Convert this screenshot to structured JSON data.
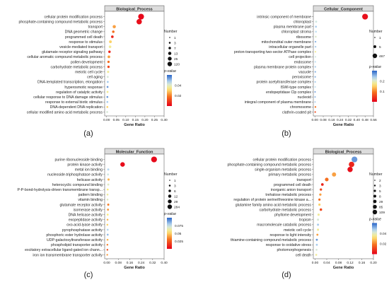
{
  "chart_data": [
    {
      "type": "scatter",
      "panel_label": "(a)",
      "title": "Biological_Process",
      "xlabel": "Gene Ratio",
      "x_ticks": [
        "0.00",
        "0.05",
        "0.10",
        "0.15",
        "0.20",
        "0.25",
        "0.30"
      ],
      "xlim": [
        -0.01,
        0.3
      ],
      "legend_size_title": "Number",
      "legend_size": [
        "1",
        "3",
        "7",
        "13",
        "25",
        "120"
      ],
      "legend_color_title": "p-value",
      "legend_color_ticks": [
        "0.04",
        "0.02"
      ],
      "color_range": [
        0.0,
        0.05
      ],
      "categories": [
        "cellular protein modification process",
        "phosphate-containing compound metabolic process",
        "transport",
        "DNA geometric change",
        "programmed cell death",
        "response to stimulus",
        "vesicle-mediated transport",
        "glutamate receptor signaling pathway",
        "cellular aromatic compound metabolic process",
        "pollen development",
        "carbohydrate metabolic process",
        "meiotic cell cycle",
        "cell aging",
        "DNA-templated transcription, elongation",
        "hyperosmotic response",
        "regulation of catalytic activity",
        "cellular response to DNA damage stimulus",
        "response to external biotic stimulus",
        "DNA-dependent DNA replication",
        "cellular modified amino acid metabolic process"
      ],
      "x": [
        0.18,
        0.17,
        0.04,
        0.035,
        0.03,
        0.02,
        0.018,
        0.015,
        0.012,
        0.01,
        0.01,
        0.008,
        0.006,
        0.006,
        0.005,
        0.005,
        0.004,
        0.004,
        0.004,
        0.003
      ],
      "size": [
        120,
        100,
        22,
        9,
        10,
        13,
        10,
        8,
        12,
        6,
        7,
        5,
        3,
        3,
        2,
        3,
        2,
        2,
        2,
        2
      ],
      "pvalue": [
        0.001,
        0.002,
        0.02,
        0.015,
        0.005,
        0.025,
        0.03,
        0.005,
        0.02,
        0.015,
        0.01,
        0.03,
        0.035,
        0.04,
        0.045,
        0.03,
        0.045,
        0.04,
        0.025,
        0.035
      ]
    },
    {
      "type": "scatter",
      "panel_label": "(b)",
      "title": "Cellular_Component",
      "xlabel": "Gene Ratio",
      "x_ticks": [
        "0.00",
        "0.08",
        "0.16",
        "0.24",
        "0.32",
        "0.40",
        "0.48",
        "0.56"
      ],
      "xlim": [
        -0.015,
        0.56
      ],
      "legend_size_title": "Number",
      "legend_size": [
        "1",
        "5",
        "467"
      ],
      "legend_color_title": "p-value",
      "legend_color_ticks": [
        "0.2",
        "0.1"
      ],
      "color_range": [
        0.0,
        0.25
      ],
      "categories": [
        "intrinsic component of membrane",
        "chloroplast",
        "plasma membrane part",
        "chloroplast stroma",
        "ribosome",
        "mitochondrial outer membrane",
        "intracellular organelle part",
        "proton-transporting two-sector ATPase complex",
        "cell projection",
        "endosome",
        "plasma membrane protein complex",
        "vacuole",
        "peroxisome",
        "protein acetyltransferase complex",
        "ISWI-type complex",
        "endopeptidase Clp complex",
        "nucleoid",
        "integral component of plasma membrane",
        "chromosome",
        "clathrin-coated pit"
      ],
      "x": [
        0.48,
        0.012,
        0.01,
        0.01,
        0.008,
        0.006,
        0.006,
        0.005,
        0.005,
        0.004,
        0.004,
        0.004,
        0.003,
        0.003,
        0.003,
        0.002,
        0.002,
        0.002,
        0.005,
        0.003
      ],
      "size": [
        467,
        12,
        8,
        8,
        6,
        4,
        4,
        3,
        3,
        3,
        3,
        3,
        2,
        2,
        2,
        1,
        1,
        1,
        4,
        2
      ],
      "pvalue": [
        0.01,
        0.18,
        0.2,
        0.19,
        0.17,
        0.21,
        0.2,
        0.15,
        0.18,
        0.19,
        0.2,
        0.21,
        0.21,
        0.2,
        0.19,
        0.22,
        0.21,
        0.2,
        0.08,
        0.05
      ]
    },
    {
      "type": "scatter",
      "panel_label": "(c)",
      "title": "Molecular_Function",
      "xlabel": "Gene Ratio",
      "x_ticks": [
        "0.00",
        "0.08",
        "0.16",
        "0.24",
        "0.32",
        "0.40"
      ],
      "xlim": [
        -0.015,
        0.4
      ],
      "legend_size_title": "Number",
      "legend_size": [
        "1",
        "3",
        "6",
        "12",
        "29",
        "284"
      ],
      "legend_color_title": "p-value",
      "legend_color_ticks": [
        "0.075",
        "0.05",
        "0.025"
      ],
      "color_range": [
        0.0,
        0.09
      ],
      "categories": [
        "purine ribonucleoside binding",
        "protein kinase activity",
        "metal ion binding",
        "nucleoside-triphosphatase activity",
        "helicase activity",
        "heterocyclic compound binding",
        "P-P-bond-hydrolysis-driven transmembrane transp...",
        "pattern binding",
        "vitamin binding",
        "glutamate receptor activity",
        "isomerase activity",
        "DNA helicase activity",
        "exopeptidase activity",
        "oxo-acid-lyase activity",
        "pyrophosphatase activity",
        "phosphoric ester hydrolase activity",
        "UDP-galactosyltransferase activity",
        "phospholipid transporter activity",
        "excitatory extracellular ligand-gated ion chann...",
        "iron ion transmembrane transporter activity"
      ],
      "x": [
        0.33,
        0.11,
        0.01,
        0.008,
        0.012,
        0.01,
        0.006,
        0.005,
        0.005,
        0.01,
        0.008,
        0.006,
        0.005,
        0.004,
        0.006,
        0.006,
        0.005,
        0.004,
        0.004,
        0.003
      ],
      "size": [
        284,
        150,
        10,
        8,
        12,
        9,
        6,
        5,
        5,
        10,
        8,
        6,
        4,
        4,
        6,
        6,
        5,
        3,
        3,
        2
      ],
      "pvalue": [
        0.002,
        0.003,
        0.07,
        0.065,
        0.04,
        0.06,
        0.05,
        0.055,
        0.06,
        0.03,
        0.035,
        0.05,
        0.04,
        0.045,
        0.07,
        0.075,
        0.04,
        0.03,
        0.02,
        0.035
      ]
    },
    {
      "type": "scatter",
      "panel_label": "(d)",
      "title": "Biological_Process",
      "xlabel": "Gene Ratio",
      "x_ticks": [
        "0.00",
        "0.04",
        "0.08",
        "0.12",
        "0.16",
        "0.20"
      ],
      "xlim": [
        -0.006,
        0.2
      ],
      "legend_size_title": "Number",
      "legend_size": [
        "2",
        "3",
        "5",
        "8",
        "29",
        "85",
        "109"
      ],
      "legend_color_title": "p-value",
      "legend_color_ticks": [
        "0.04",
        "0.02"
      ],
      "color_range": [
        0.0,
        0.05
      ],
      "categories": [
        "cellular protein modification process",
        "phosphate-containing compound metabolic process",
        "single-organism metabolic process",
        "primary metabolic process",
        "transport",
        "programmed cell death",
        "inorganic anion transport",
        "trehalose metabolic process",
        "regulation of protein serine/threonine kinase a...",
        "glutamine family amino acid metabolic process",
        "carbohydrate metabolic process",
        "phyllome development",
        "tropism",
        "macromolecule catabolic process",
        "meiotic cell cycle",
        "response to light intensity",
        "thiamine-containing compound metabolic process",
        "response to oxidative stress",
        "photomorphogenesis",
        "cell death"
      ],
      "x": [
        0.135,
        0.125,
        0.12,
        0.065,
        0.04,
        0.025,
        0.02,
        0.018,
        0.015,
        0.015,
        0.02,
        0.012,
        0.01,
        0.01,
        0.01,
        0.008,
        0.006,
        0.006,
        0.005,
        0.004
      ],
      "size": [
        109,
        95,
        85,
        45,
        29,
        10,
        6,
        6,
        5,
        5,
        8,
        5,
        4,
        4,
        4,
        3,
        3,
        3,
        2,
        2
      ],
      "pvalue": [
        0.045,
        0.005,
        0.002,
        0.02,
        0.015,
        0.005,
        0.01,
        0.02,
        0.015,
        0.025,
        0.01,
        0.03,
        0.035,
        0.04,
        0.03,
        0.02,
        0.045,
        0.04,
        0.035,
        0.03
      ]
    }
  ]
}
